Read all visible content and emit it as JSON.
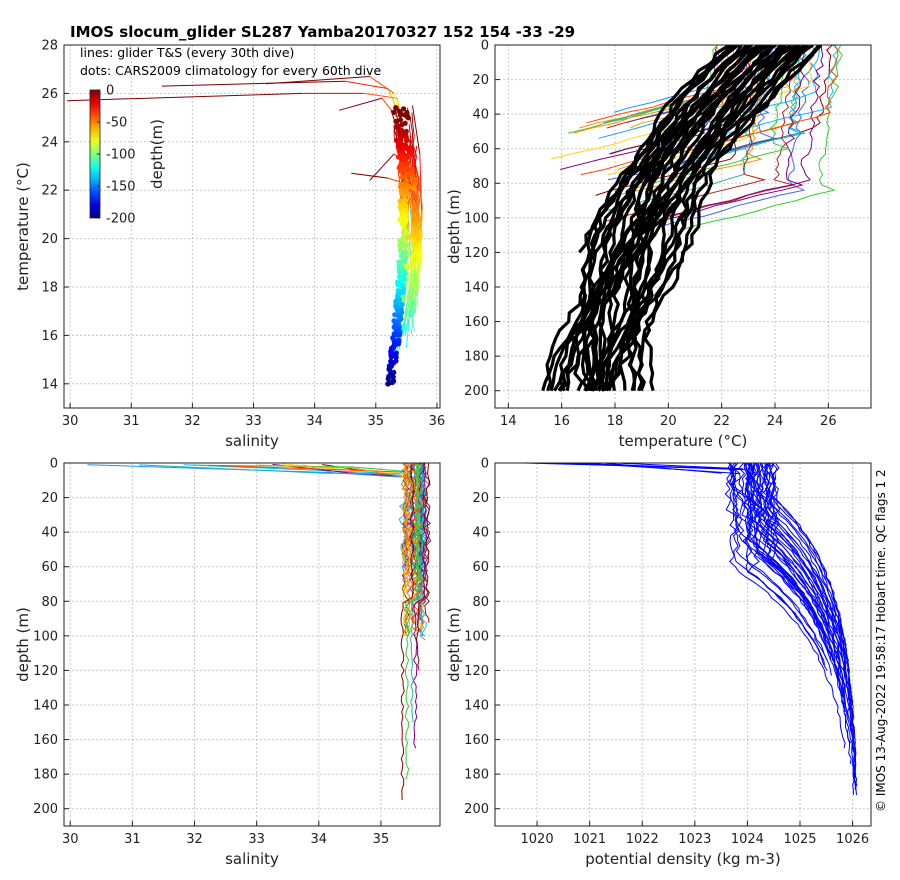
{
  "title": "IMOS slocum_glider SL287 Yamba20170327 152  154  -33  -29",
  "credit": "© IMOS 13-Aug-2022 19:58:17 Hobart time. QC flags 1  2",
  "legend_lines": [
    "lines: glider T&S (every 30th dive)",
    "dots: CARS2009 climatology for every 60th dive"
  ],
  "colorbar": {
    "label": "depth(m)",
    "ticks": [
      "0",
      "-50",
      "-100",
      "-150",
      "-200"
    ],
    "range": [
      -200,
      0
    ]
  },
  "chart_data": [
    {
      "id": "ts",
      "type": "line",
      "xlabel": "salinity",
      "ylabel": "temperature (°C)",
      "xlim": [
        29.9,
        36.05
      ],
      "ylim": [
        13,
        28
      ],
      "xticks": [
        30,
        31,
        32,
        33,
        34,
        35,
        36
      ],
      "yticks": [
        14,
        16,
        18,
        20,
        22,
        24,
        26,
        28
      ],
      "grid": true,
      "series_note": "glider T&S profiles colored by depth; climatology dots",
      "lines": [
        {
          "x": [
            29.95,
            33.8,
            34.8,
            35.35,
            35.45,
            35.5,
            35.55,
            35.6
          ],
          "y": [
            25.7,
            26.0,
            26.0,
            25.8,
            24.5,
            22.0,
            20.0,
            18.0
          ]
        },
        {
          "x": [
            31.5,
            34.5,
            35.2,
            35.4,
            35.55,
            35.62
          ],
          "y": [
            26.3,
            26.5,
            26.2,
            25.0,
            22.0,
            19.0
          ]
        },
        {
          "x": [
            33.2,
            34.9,
            35.3,
            35.55,
            35.65
          ],
          "y": [
            26.4,
            26.7,
            26.0,
            23.5,
            20.5
          ]
        },
        {
          "x": [
            34.4,
            35.1,
            35.35,
            35.6,
            35.7
          ],
          "y": [
            25.3,
            25.8,
            25.0,
            22.0,
            19.5
          ]
        },
        {
          "x": [
            34.6,
            35.2,
            35.45,
            35.65,
            35.6
          ],
          "y": [
            22.7,
            22.5,
            22.3,
            21.0,
            18.0
          ]
        },
        {
          "x": [
            34.9,
            35.3,
            35.5,
            35.68,
            35.6
          ],
          "y": [
            22.4,
            23.5,
            23.0,
            20.5,
            17.0
          ]
        },
        {
          "x": [
            35.25,
            35.42,
            35.55,
            35.62,
            35.55,
            35.45
          ],
          "y": [
            25.3,
            24.0,
            22.0,
            20.0,
            18.0,
            16.0
          ]
        },
        {
          "x": [
            35.3,
            35.5,
            35.6,
            35.65,
            35.58,
            35.5
          ],
          "y": [
            24.5,
            23.0,
            21.5,
            19.5,
            17.5,
            15.5
          ]
        },
        {
          "x": [
            35.35,
            35.55,
            35.7,
            35.62,
            35.5,
            35.35
          ],
          "y": [
            25.0,
            22.5,
            21.0,
            19.0,
            17.0,
            15.0
          ]
        },
        {
          "x": [
            35.6,
            35.72,
            35.75,
            35.6,
            35.45,
            35.3
          ],
          "y": [
            25.5,
            23.5,
            21.0,
            18.5,
            16.5,
            14.8
          ]
        }
      ],
      "dots": {
        "x": [
          35.2,
          35.22,
          35.25,
          35.28,
          35.3,
          35.33,
          35.36,
          35.4,
          35.42,
          35.44,
          35.45,
          35.43,
          35.4,
          35.37,
          35.35,
          35.33
        ],
        "y": [
          14.0,
          14.6,
          15.2,
          15.9,
          16.6,
          17.4,
          18.2,
          19.0,
          19.8,
          20.6,
          21.4,
          22.2,
          23.0,
          23.8,
          24.6,
          25.4
        ]
      }
    },
    {
      "id": "tz",
      "type": "line",
      "xlabel": "temperature (°C)",
      "ylabel": "depth (m)",
      "xlim": [
        13.5,
        27.6
      ],
      "ylim": [
        210,
        0
      ],
      "xticks": [
        14,
        16,
        18,
        20,
        22,
        24,
        26
      ],
      "yticks": [
        0,
        20,
        40,
        60,
        80,
        100,
        120,
        140,
        160,
        180,
        200
      ],
      "grid": true,
      "thick_profiles_temp_at_0m": [
        22.2,
        22.5,
        22.8,
        23.1,
        23.4,
        23.7,
        24.0,
        24.3,
        24.6,
        24.9,
        25.2
      ],
      "thin_profiles_temp_at_0m": [
        26.5,
        26.2,
        25.8,
        25.4,
        25.0,
        24.6,
        24.2
      ]
    },
    {
      "id": "sz",
      "type": "line",
      "xlabel": "salinity",
      "ylabel": "depth (m)",
      "xlim": [
        29.9,
        35.95
      ],
      "ylim": [
        210,
        0
      ],
      "xticks": [
        30,
        31,
        32,
        33,
        34,
        35
      ],
      "yticks": [
        0,
        20,
        40,
        60,
        80,
        100,
        120,
        140,
        160,
        180,
        200
      ],
      "grid": true,
      "deep_profiles": [
        {
          "x_deep": 35.35,
          "max_depth": 197
        },
        {
          "x_deep": 35.42,
          "max_depth": 185
        },
        {
          "x_deep": 35.55,
          "max_depth": 165
        },
        {
          "x_deep": 35.5,
          "max_depth": 150
        },
        {
          "x_deep": 35.6,
          "max_depth": 120
        },
        {
          "x_deep": 35.45,
          "max_depth": 100
        }
      ]
    },
    {
      "id": "dz",
      "type": "line",
      "xlabel": "potential density (kg m-3)",
      "ylabel": "depth (m)",
      "xlim": [
        1019.2,
        1026.35
      ],
      "ylim": [
        210,
        0
      ],
      "xticks": [
        1020,
        1021,
        1022,
        1023,
        1024,
        1025,
        1026
      ],
      "yticks": [
        0,
        20,
        40,
        60,
        80,
        100,
        120,
        140,
        160,
        180,
        200
      ],
      "grid": true,
      "series_color": "#0000ff",
      "profiles_density_at_0m": [
        1023.6,
        1023.7,
        1023.8,
        1023.9,
        1024.0,
        1024.1,
        1024.2,
        1024.3,
        1024.4,
        1024.5
      ]
    }
  ]
}
